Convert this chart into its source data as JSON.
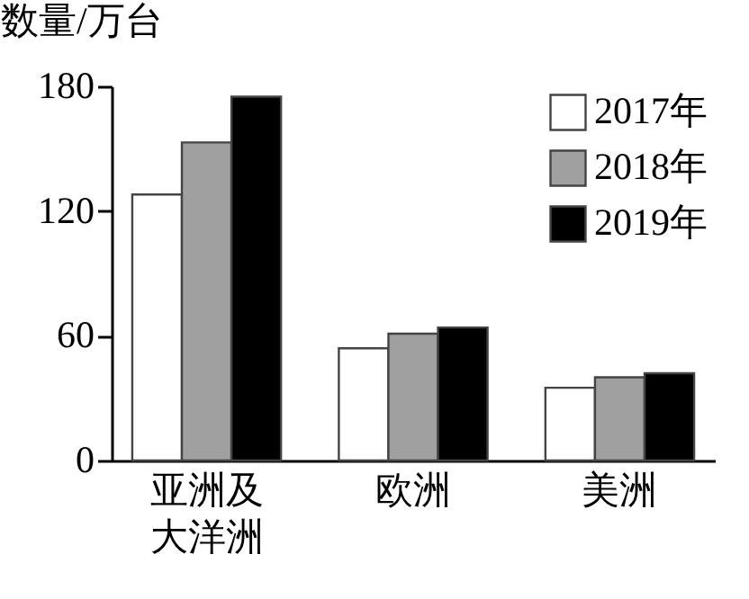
{
  "chart_data": {
    "type": "bar",
    "ylabel": "数量/万台",
    "categories": [
      "亚洲及大洋洲",
      "欧洲",
      "美洲"
    ],
    "series": [
      {
        "name": "2017年",
        "color": "#ffffff",
        "values": [
          128,
          54,
          35
        ]
      },
      {
        "name": "2018年",
        "color": "#a0a0a0",
        "values": [
          153,
          61,
          40
        ]
      },
      {
        "name": "2019年",
        "color": "#000000",
        "values": [
          175,
          64,
          42
        ]
      }
    ],
    "ylim": [
      0,
      180
    ],
    "yticks": [
      0,
      60,
      120,
      180
    ],
    "grid": false,
    "legend": "top right"
  }
}
